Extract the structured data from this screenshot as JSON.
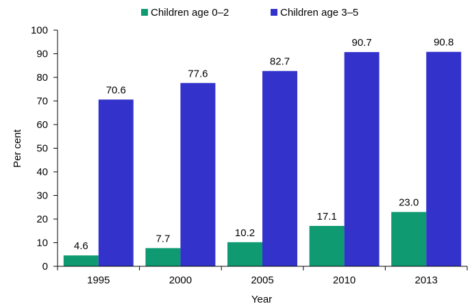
{
  "chart_data": {
    "type": "bar",
    "categories": [
      "1995",
      "2000",
      "2005",
      "2010",
      "2013"
    ],
    "series": [
      {
        "name": "Children age 0–2",
        "color": "#0f9a72",
        "values": [
          4.6,
          7.7,
          10.2,
          17.1,
          23.0
        ],
        "labels": [
          "4.6",
          "7.7",
          "10.2",
          "17.1",
          "23.0"
        ]
      },
      {
        "name": "Children age 3–5",
        "color": "#3333cc",
        "values": [
          70.6,
          77.6,
          82.7,
          90.7,
          90.8
        ],
        "labels": [
          "70.6",
          "77.6",
          "82.7",
          "90.7",
          "90.8"
        ]
      }
    ],
    "xlabel": "Year",
    "ylabel": "Per cent",
    "ylim": [
      0,
      100
    ],
    "yticks": [
      "0",
      "10",
      "20",
      "30",
      "40",
      "50",
      "60",
      "70",
      "80",
      "90",
      "100"
    ],
    "grid": false,
    "legend_position": "top-center"
  }
}
